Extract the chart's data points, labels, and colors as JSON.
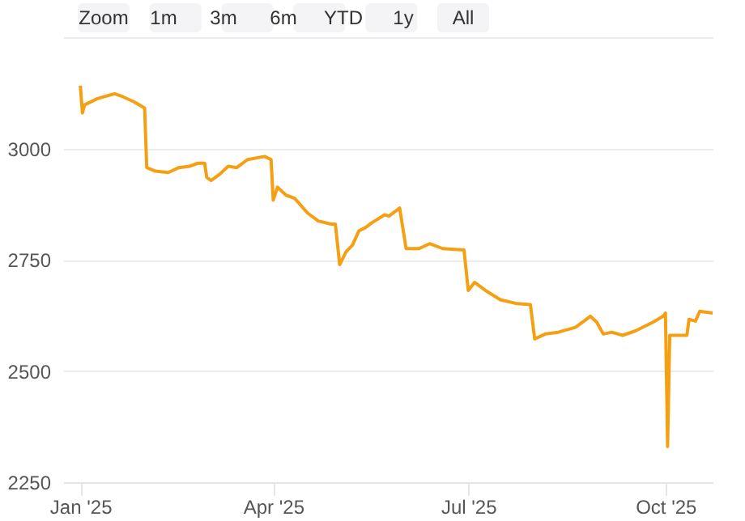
{
  "chart_data": {
    "type": "line",
    "annotations": [
      "Zoom",
      "1m",
      "3m",
      "6m",
      "YTD",
      "1y",
      "All"
    ],
    "x": [
      "2025-01-01",
      "2025-01-02",
      "2025-01-03",
      "2025-01-09",
      "2025-01-17",
      "2025-01-21",
      "2025-01-26",
      "2025-01-31",
      "2025-02-01",
      "2025-02-05",
      "2025-02-11",
      "2025-02-16",
      "2025-02-21",
      "2025-02-25",
      "2025-02-28",
      "2025-03-01",
      "2025-03-03",
      "2025-03-07",
      "2025-03-11",
      "2025-03-15",
      "2025-03-20",
      "2025-03-28",
      "2025-03-31",
      "2025-04-01",
      "2025-04-03",
      "2025-04-07",
      "2025-04-11",
      "2025-04-17",
      "2025-04-22",
      "2025-04-28",
      "2025-04-30",
      "2025-05-02",
      "2025-05-05",
      "2025-05-08",
      "2025-05-11",
      "2025-05-14",
      "2025-05-17",
      "2025-05-23",
      "2025-05-25",
      "2025-05-30",
      "2025-06-02",
      "2025-06-08",
      "2025-06-13",
      "2025-06-19",
      "2025-06-29",
      "2025-07-01",
      "2025-07-04",
      "2025-07-09",
      "2025-07-16",
      "2025-07-23",
      "2025-07-30",
      "2025-08-01",
      "2025-08-06",
      "2025-08-12",
      "2025-08-20",
      "2025-08-24",
      "2025-08-27",
      "2025-08-30",
      "2025-09-02",
      "2025-09-06",
      "2025-09-11",
      "2025-09-17",
      "2025-09-25",
      "2025-09-30",
      "2025-10-01",
      "2025-10-02",
      "2025-10-03",
      "2025-10-08",
      "2025-10-11",
      "2025-10-12",
      "2025-10-15",
      "2025-10-17",
      "2025-10-23"
    ],
    "series": [
      {
        "color": "#f59f12",
        "values": [
          3141,
          3080,
          3098,
          3112,
          3123,
          3116,
          3105,
          3091,
          2957,
          2949,
          2946,
          2957,
          2960,
          2967,
          2967,
          2935,
          2928,
          2942,
          2960,
          2957,
          2975,
          2982,
          2975,
          2884,
          2913,
          2895,
          2888,
          2855,
          2837,
          2830,
          2830,
          2739,
          2768,
          2783,
          2815,
          2822,
          2833,
          2851,
          2848,
          2866,
          2775,
          2775,
          2786,
          2775,
          2772,
          2681,
          2699,
          2681,
          2660,
          2652,
          2649,
          2572,
          2583,
          2587,
          2598,
          2612,
          2623,
          2609,
          2583,
          2587,
          2580,
          2590,
          2609,
          2623,
          2630,
          2330,
          2580,
          2580,
          2580,
          2616,
          2612,
          2634,
          2630
        ]
      }
    ],
    "xlim": [
      "2024-12-24",
      "2025-10-23"
    ],
    "xticks": [
      {
        "value": "2025-01-01",
        "label": "Jan '25"
      },
      {
        "value": "2025-04-01",
        "label": "Apr '25"
      },
      {
        "value": "2025-07-01",
        "label": "Jul '25"
      },
      {
        "value": "2025-10-01",
        "label": "Oct '25"
      }
    ],
    "ylim": [
      2250,
      3250
    ],
    "yticks": [
      2250,
      2500,
      2750,
      3000,
      {
        "value": 3250,
        "label": null
      }
    ],
    "grid": "y",
    "marker": "none",
    "line_style": "solid"
  }
}
